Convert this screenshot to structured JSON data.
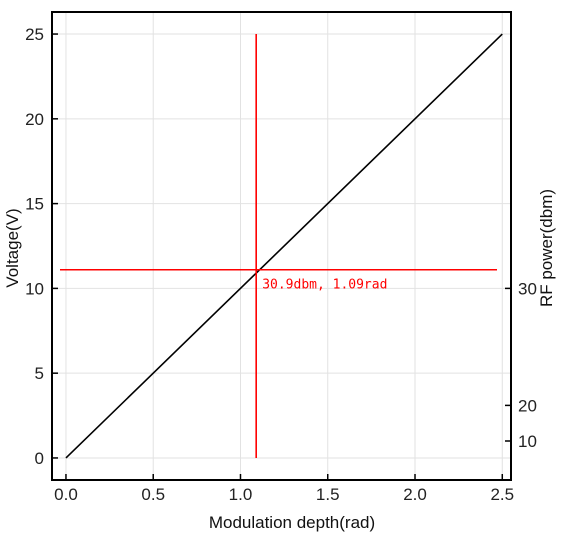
{
  "chart_data": {
    "type": "line",
    "title": "",
    "xlabel": "Modulation depth(rad)",
    "ylabel": "Voltage(V)",
    "y2label": "RF power(dbm)",
    "xlim": [
      -0.08,
      2.55
    ],
    "ylim": [
      -1.3,
      26.3
    ],
    "grid": true,
    "x_ticks": [
      0.0,
      0.5,
      1.0,
      1.5,
      2.0,
      2.5
    ],
    "x_tick_labels": [
      "0.0",
      "0.5",
      "1.0",
      "1.5",
      "2.0",
      "2.5"
    ],
    "y_ticks": [
      0,
      5,
      10,
      15,
      20,
      25
    ],
    "y_tick_labels": [
      "0",
      "5",
      "10",
      "15",
      "20",
      "25"
    ],
    "y2_ticks": [
      {
        "label": "30",
        "voltage": 10.0
      },
      {
        "label": "20",
        "voltage": 3.1
      },
      {
        "label": "10",
        "voltage": 1.0
      }
    ],
    "series": [
      {
        "x": [
          0.0,
          2.5
        ],
        "y": [
          0.0,
          25.0
        ],
        "color": "#000000"
      }
    ],
    "crosshair": {
      "x": 1.09,
      "y": 11.1,
      "vertical_y_range": [
        0,
        25
      ],
      "horizontal_x_range": [
        -0.08,
        2.55
      ],
      "color": "#ff0000",
      "label": "30.9dbm, 1.09rad"
    }
  }
}
